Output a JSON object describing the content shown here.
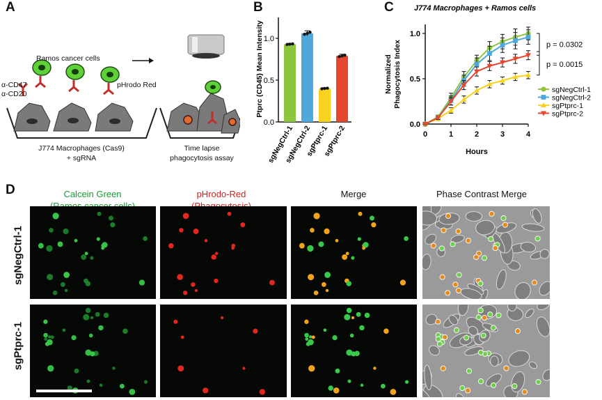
{
  "panels": {
    "a": {
      "letter": "A"
    },
    "b": {
      "letter": "B"
    },
    "c": {
      "letter": "C"
    },
    "d": {
      "letter": "D"
    }
  },
  "schematic": {
    "ramos_label": "Ramos cancer cells",
    "antibody_1": "α-CD47",
    "antibody_2": "α-CD20",
    "dye_label": "pHrodo Red",
    "macrophage_label_1": "J774 Macrophages (Cas9)",
    "macrophage_label_2": "+ sgRNA",
    "assay_label_1": "Time lapse",
    "assay_label_2": "phagocytosis assay"
  },
  "colors": {
    "green": "#8cc63f",
    "blue": "#4fa8dc",
    "yellow": "#f9d21f",
    "red": "#e5462f",
    "green_text": "#1a9a3a",
    "red_text": "#d32020"
  },
  "chart_data": [
    {
      "type": "bar",
      "panel": "B",
      "title": "",
      "ylabel": "Ptprc (CD45) Mean Intensity",
      "xlabel": "",
      "categories": [
        "sgNegCtrl-1",
        "sgNegCtrl-2",
        "sgPtprc-1",
        "sgPtprc-2"
      ],
      "values": [
        0.93,
        1.06,
        0.4,
        0.79
      ],
      "errors": [
        0.01,
        0.03,
        0.01,
        0.02
      ],
      "bar_colors": [
        "#8cc63f",
        "#4fa8dc",
        "#f9d21f",
        "#e5462f"
      ],
      "ylim": [
        0,
        1.25
      ],
      "yticks": [
        "0.0",
        "0.5",
        "1.0"
      ],
      "grid": false
    },
    {
      "type": "line",
      "panel": "C",
      "title": "J774 Macrophages + Ramos cells",
      "xlabel": "Hours",
      "ylabel": "Normalized Phagocytosis Index",
      "ylabel_line1": "Normalized",
      "ylabel_line2": "Phagocytosis Index",
      "x": [
        0,
        0.5,
        1,
        1.5,
        2,
        2.5,
        3,
        3.5,
        4
      ],
      "xlim": [
        0,
        4
      ],
      "ylim": [
        0,
        1.1
      ],
      "xticks": [
        "0",
        "1",
        "2",
        "3",
        "4"
      ],
      "yticks": [
        "0.0",
        "0.5",
        "1.0"
      ],
      "legend_position": "right",
      "series": [
        {
          "name": "sgNegCtrl-1",
          "color": "#8cc63f",
          "marker": "circle",
          "values": [
            0,
            0.08,
            0.29,
            0.52,
            0.7,
            0.84,
            0.91,
            0.96,
            1.0
          ],
          "errors": [
            0.01,
            0.02,
            0.05,
            0.06,
            0.06,
            0.07,
            0.08,
            0.09,
            0.07
          ]
        },
        {
          "name": "sgNegCtrl-2",
          "color": "#4fa8dc",
          "marker": "square",
          "values": [
            0,
            0.07,
            0.26,
            0.48,
            0.66,
            0.78,
            0.87,
            0.92,
            0.96
          ],
          "errors": [
            0.01,
            0.02,
            0.05,
            0.06,
            0.07,
            0.08,
            0.08,
            0.09,
            0.08
          ]
        },
        {
          "name": "sgPtprc-1",
          "color": "#f9d21f",
          "marker": "triangle-up",
          "values": [
            0,
            0.06,
            0.15,
            0.27,
            0.37,
            0.44,
            0.48,
            0.52,
            0.54
          ],
          "errors": [
            0.01,
            0.02,
            0.03,
            0.04,
            0.04,
            0.04,
            0.04,
            0.04,
            0.04
          ]
        },
        {
          "name": "sgPtprc-2",
          "color": "#e5462f",
          "marker": "triangle-down",
          "values": [
            0,
            0.07,
            0.25,
            0.43,
            0.58,
            0.64,
            0.68,
            0.72,
            0.76
          ],
          "errors": [
            0.01,
            0.02,
            0.04,
            0.05,
            0.05,
            0.05,
            0.05,
            0.05,
            0.05
          ]
        }
      ],
      "annotations": [
        "p = 0.0302",
        "p = 0.0015"
      ]
    }
  ],
  "microscopy": {
    "columns": [
      {
        "line1": "Calcein Green",
        "line2": "(Ramos cancer cells)"
      },
      {
        "line1": "pHrodo-Red",
        "line2": "(Phagocytosis)"
      },
      {
        "line1": "Merge",
        "line2": ""
      },
      {
        "line1": "Phase Contrast Merge",
        "line2": ""
      }
    ],
    "rows": [
      "sgNegCtrl-1",
      "sgPtprc-1"
    ]
  }
}
